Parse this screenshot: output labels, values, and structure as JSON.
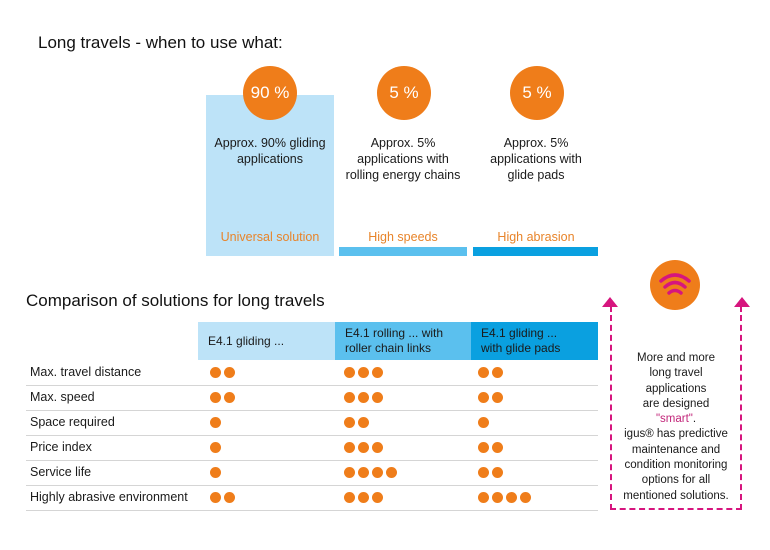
{
  "title": "Long travels - when to use what:",
  "columns": [
    {
      "percent": "90 %",
      "desc": [
        "Approx. 90% gliding",
        "applications"
      ],
      "tag": "Universal solution"
    },
    {
      "percent": "5 %",
      "desc": [
        "Approx. 5%",
        "applications with",
        "rolling energy chains"
      ],
      "tag": "High speeds"
    },
    {
      "percent": "5 %",
      "desc": [
        "Approx. 5%",
        "applications with",
        "glide pads"
      ],
      "tag": "High abrasion"
    }
  ],
  "comparison": {
    "title": "Comparison of solutions for long travels",
    "headers": [
      [
        "E4.1 gliding ...",
        ""
      ],
      [
        "E4.1 rolling ... with",
        "roller chain links"
      ],
      [
        "E4.1 gliding ...",
        "with glide pads"
      ]
    ],
    "rows": [
      {
        "label": "Max. travel distance",
        "ratings": [
          2,
          3,
          2
        ]
      },
      {
        "label": "Max. speed",
        "ratings": [
          2,
          3,
          2
        ]
      },
      {
        "label": "Space required",
        "ratings": [
          1,
          2,
          1
        ]
      },
      {
        "label": "Price index",
        "ratings": [
          1,
          3,
          2
        ]
      },
      {
        "label": "Service life",
        "ratings": [
          1,
          4,
          2
        ]
      },
      {
        "label": "Highly abrasive environment",
        "ratings": [
          2,
          3,
          4
        ]
      }
    ]
  },
  "smart_note": {
    "icon": "wifi-signal-icon",
    "pre": [
      "More and more",
      "long travel",
      "applications",
      "are designed"
    ],
    "highlight": "\"smart\"",
    "post_punct": ".",
    "lines": [
      "igus® has predictive",
      "maintenance and",
      "condition monitoring",
      "options for all",
      "mentioned solutions."
    ]
  },
  "colors": {
    "orange": "#ef7d1a",
    "magenta": "#d6157e",
    "light_blue": "#bde3f8",
    "mid_blue": "#5bc0ee",
    "blue": "#0aa0e0"
  }
}
